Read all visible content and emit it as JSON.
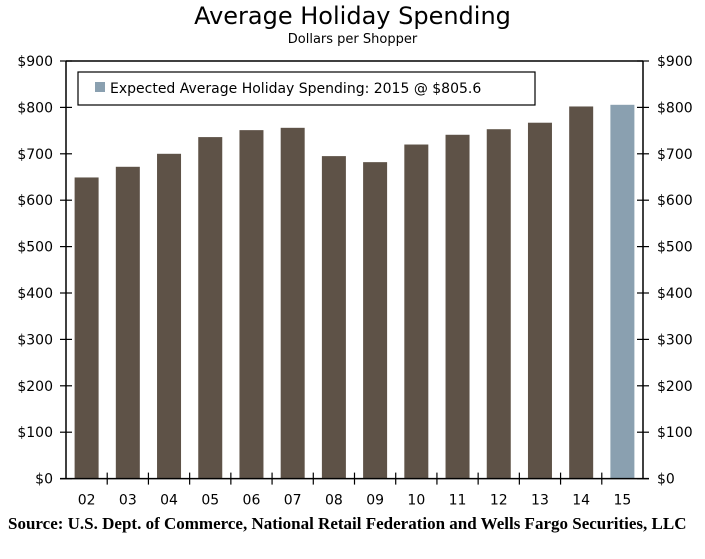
{
  "chart_data": {
    "type": "bar",
    "title": "Average Holiday Spending",
    "subtitle": "Dollars per Shopper",
    "xlabel": "",
    "ylabel": "",
    "categories": [
      "02",
      "03",
      "04",
      "05",
      "06",
      "07",
      "08",
      "09",
      "10",
      "11",
      "12",
      "13",
      "14",
      "15"
    ],
    "values": [
      649,
      672,
      700,
      736,
      751,
      756,
      695,
      682,
      720,
      741,
      753,
      767,
      802,
      805.6
    ],
    "highlight_index": 13,
    "colors": {
      "bar": "#5e5247",
      "highlight": "#8aa0b0",
      "axis": "#000000"
    },
    "ylim": [
      0,
      900
    ],
    "y_ticks": [
      0,
      100,
      200,
      300,
      400,
      500,
      600,
      700,
      800,
      900
    ],
    "y_tick_labels": [
      "$0",
      "$100",
      "$200",
      "$300",
      "$400",
      "$500",
      "$600",
      "$700",
      "$800",
      "$900"
    ],
    "y_axes": [
      "left",
      "right"
    ],
    "grid": false,
    "legend": {
      "placement": "top-left",
      "entries": [
        {
          "label": "Expected Average Holiday Spending: 2015 @ $805.6",
          "color": "#8aa0b0"
        }
      ]
    }
  },
  "source": "Source: U.S. Dept. of Commerce, National Retail Federation and Wells Fargo Securities, LLC"
}
